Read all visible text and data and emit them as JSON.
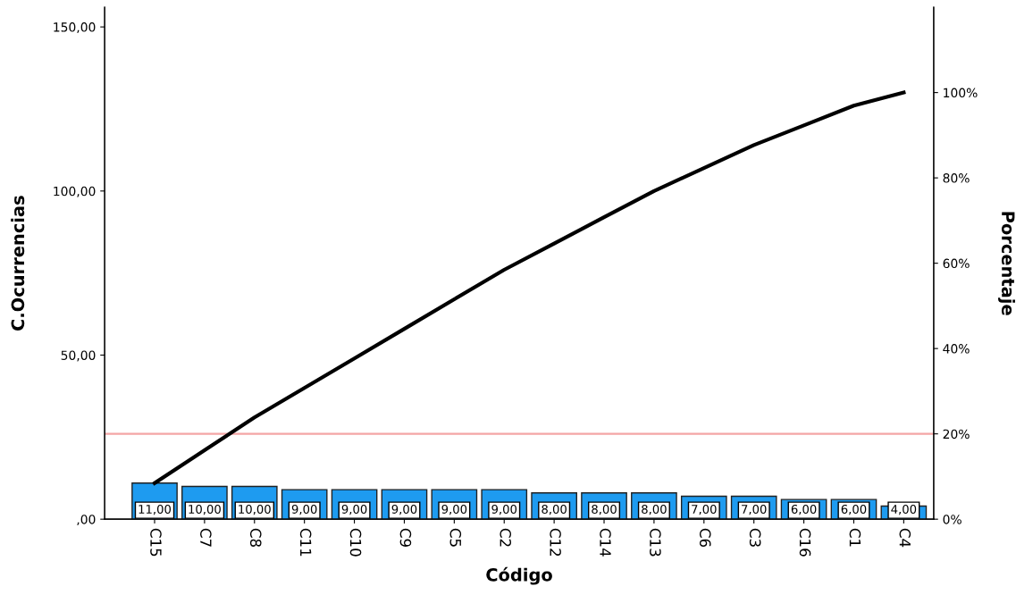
{
  "chart_data": {
    "type": "bar",
    "xlabel": "Código",
    "ylabel": "C.Ocurrencias",
    "y2label": "Porcentaje",
    "categories": [
      "C15",
      "C7",
      "C8",
      "C11",
      "C10",
      "C9",
      "C5",
      "C2",
      "C12",
      "C14",
      "C13",
      "C6",
      "C3",
      "C16",
      "C1",
      "C4"
    ],
    "series": [
      {
        "color": "#1e9bf0",
        "values": [
          11,
          10,
          10,
          9,
          9,
          9,
          9,
          9,
          8,
          8,
          8,
          7,
          7,
          6,
          6,
          4
        ],
        "value_labels": [
          "11,00",
          "10,00",
          "10,00",
          "9,00",
          "9,00",
          "9,00",
          "9,00",
          "9,00",
          "8,00",
          "8,00",
          "8,00",
          "7,00",
          "7,00",
          "6,00",
          "6,00",
          "4,00"
        ]
      },
      {
        "type": "line",
        "color": "#000000",
        "values": [
          11,
          21,
          31,
          40,
          49,
          58,
          67,
          76,
          84,
          92,
          100,
          107,
          114,
          120,
          126,
          130
        ]
      }
    ],
    "ylim": [
      0,
      156
    ],
    "yticks": [
      {
        "value": 0,
        "label": ",00"
      },
      {
        "value": 50,
        "label": "50,00"
      },
      {
        "value": 100,
        "label": "100,00"
      },
      {
        "value": 150,
        "label": "150,00"
      }
    ],
    "y2lim": [
      0,
      120
    ],
    "y2ticks": [
      {
        "value": 0,
        "label": "0%"
      },
      {
        "value": 20,
        "label": "20%"
      },
      {
        "value": 40,
        "label": "40%"
      },
      {
        "value": 60,
        "label": "60%"
      },
      {
        "value": 80,
        "label": "80%"
      },
      {
        "value": 100,
        "label": "100%"
      }
    ],
    "ref_lines": [
      {
        "axis": "y2",
        "value": 20,
        "color": "#f4a6a6"
      }
    ],
    "grid": false,
    "legend": false
  }
}
